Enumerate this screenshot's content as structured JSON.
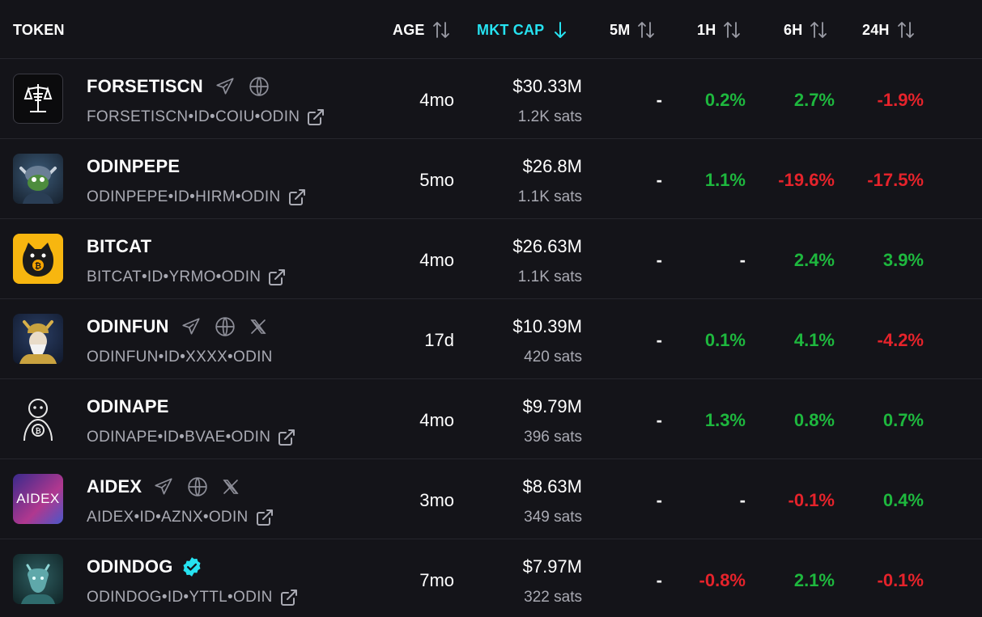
{
  "header": {
    "token": "TOKEN",
    "age": "AGE",
    "mkt_cap": "MKT CAP",
    "m5": "5M",
    "h1": "1H",
    "h6": "6H",
    "h24": "24H"
  },
  "colors": {
    "accent": "#26e2f0",
    "positive": "#1eb83e",
    "negative": "#e5232b",
    "background": "#141419"
  },
  "rows": [
    {
      "name": "FORSETISCN",
      "id": "FORSETISCN•ID•COIU•ODIN",
      "age": "4mo",
      "mkt_cap": "$30.33M",
      "sats": "1.2K sats",
      "m5": "-",
      "h1": "0.2%",
      "h6": "2.7%",
      "h24": "-1.9%",
      "icons": [
        "telegram-icon",
        "globe-icon"
      ],
      "external_link": true
    },
    {
      "name": "ODINPEPE",
      "id": "ODINPEPE•ID•HIRM•ODIN",
      "age": "5mo",
      "mkt_cap": "$26.8M",
      "sats": "1.1K sats",
      "m5": "-",
      "h1": "1.1%",
      "h6": "-19.6%",
      "h24": "-17.5%",
      "icons": [],
      "external_link": true
    },
    {
      "name": "BITCAT",
      "id": "BITCAT•ID•YRMO•ODIN",
      "age": "4mo",
      "mkt_cap": "$26.63M",
      "sats": "1.1K sats",
      "m5": "-",
      "h1": "-",
      "h6": "2.4%",
      "h24": "3.9%",
      "icons": [],
      "external_link": true
    },
    {
      "name": "ODINFUN",
      "id": "ODINFUN•ID•XXXX•ODIN",
      "age": "17d",
      "mkt_cap": "$10.39M",
      "sats": "420 sats",
      "m5": "-",
      "h1": "0.1%",
      "h6": "4.1%",
      "h24": "-4.2%",
      "icons": [
        "telegram-icon",
        "globe-icon",
        "x-icon"
      ],
      "external_link": false
    },
    {
      "name": "ODINAPE",
      "id": "ODINAPE•ID•BVAE•ODIN",
      "age": "4mo",
      "mkt_cap": "$9.79M",
      "sats": "396 sats",
      "m5": "-",
      "h1": "1.3%",
      "h6": "0.8%",
      "h24": "0.7%",
      "icons": [],
      "external_link": true
    },
    {
      "name": "AIDEX",
      "id": "AIDEX•ID•AZNX•ODIN",
      "age": "3mo",
      "mkt_cap": "$8.63M",
      "sats": "349 sats",
      "m5": "-",
      "h1": "-",
      "h6": "-0.1%",
      "h24": "0.4%",
      "icons": [
        "telegram-icon",
        "globe-icon",
        "x-icon"
      ],
      "external_link": true,
      "avatar_text": "AIDEX"
    },
    {
      "name": "ODINDOG",
      "id": "ODINDOG•ID•YTTL•ODIN",
      "age": "7mo",
      "mkt_cap": "$7.97M",
      "sats": "322 sats",
      "m5": "-",
      "h1": "-0.8%",
      "h6": "2.1%",
      "h24": "-0.1%",
      "icons": [
        "verified-badge-icon"
      ],
      "external_link": true
    }
  ]
}
